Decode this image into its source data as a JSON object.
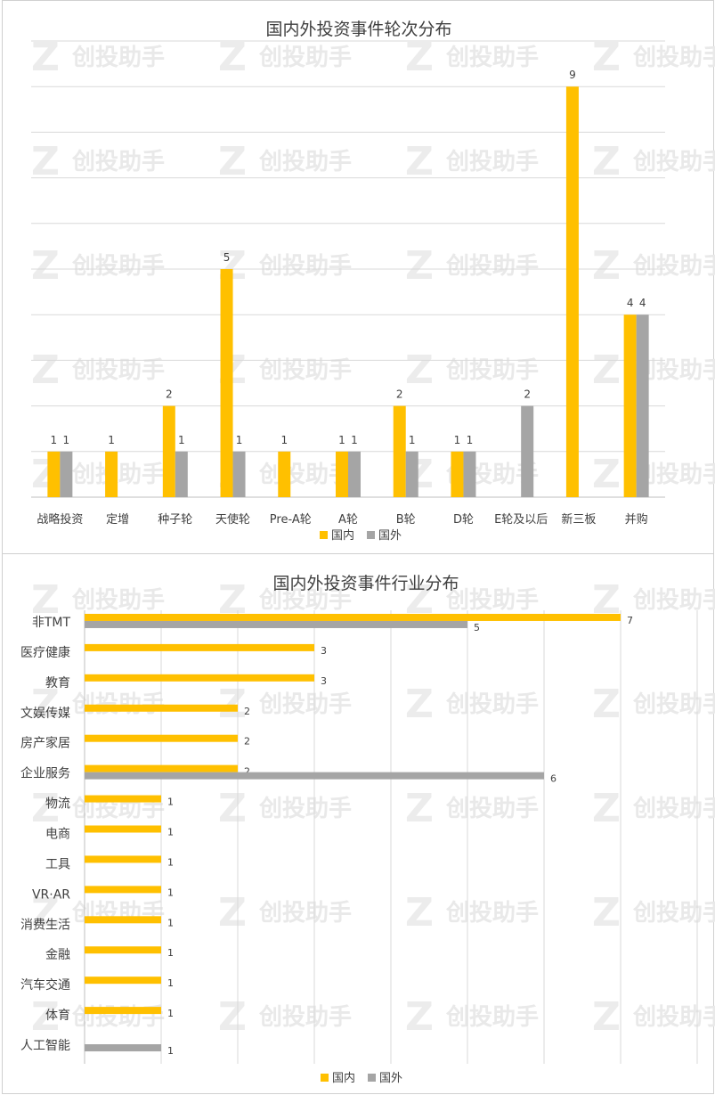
{
  "colors": {
    "domestic": "#FFC000",
    "foreign": "#A5A5A5",
    "grid": "#D9D9D9",
    "text": "#404040"
  },
  "watermark": "创投助手",
  "chart_data": [
    {
      "type": "bar",
      "title": "国内外投资事件轮次分布",
      "categories": [
        "战略投资",
        "定增",
        "种子轮",
        "天使轮",
        "Pre-A轮",
        "A轮",
        "B轮",
        "D轮",
        "E轮及以后",
        "新三板",
        "并购"
      ],
      "series": [
        {
          "name": "国内",
          "values": [
            1,
            1,
            2,
            5,
            1,
            1,
            2,
            1,
            null,
            9,
            4
          ]
        },
        {
          "name": "国外",
          "values": [
            1,
            null,
            1,
            1,
            null,
            1,
            1,
            1,
            2,
            null,
            4
          ]
        }
      ],
      "ylim": [
        0,
        10
      ],
      "grid": true,
      "legend": "bottom"
    },
    {
      "type": "bar",
      "orientation": "horizontal",
      "title": "国内外投资事件行业分布",
      "categories": [
        "非TMT",
        "医疗健康",
        "教育",
        "文娱传媒",
        "房产家居",
        "企业服务",
        "物流",
        "电商",
        "工具",
        "VR·AR",
        "消费生活",
        "金融",
        "汽车交通",
        "体育",
        "人工智能"
      ],
      "series": [
        {
          "name": "国内",
          "values": [
            7,
            3,
            3,
            2,
            2,
            2,
            1,
            1,
            1,
            1,
            1,
            1,
            1,
            1,
            null
          ]
        },
        {
          "name": "国外",
          "values": [
            5,
            null,
            null,
            null,
            null,
            6,
            null,
            null,
            null,
            null,
            null,
            null,
            null,
            null,
            1
          ]
        }
      ],
      "xlim": [
        0,
        8
      ],
      "grid": true,
      "legend": "bottom"
    }
  ]
}
